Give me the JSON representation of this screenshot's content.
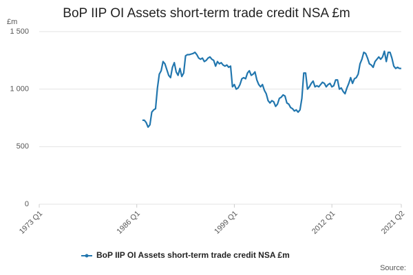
{
  "chart_data": {
    "type": "line",
    "title": "BoP IIP OI Assets short-term trade credit NSA £m",
    "y_unit": "£m",
    "source": "Source:",
    "categories": [
      "1973 Q1",
      null,
      null,
      null,
      null,
      null,
      null,
      null,
      null,
      null,
      null,
      null,
      null,
      null,
      null,
      null,
      null,
      null,
      null,
      null,
      null,
      null,
      null,
      null,
      null,
      null,
      null,
      null,
      null,
      null,
      null,
      null,
      null,
      null,
      null,
      null,
      null,
      null,
      null,
      null,
      null,
      null,
      null,
      null,
      null,
      null,
      null,
      null,
      null,
      null,
      null,
      null,
      "1986 Q1",
      null,
      null,
      null,
      null,
      null,
      null,
      null,
      null,
      null,
      null,
      null,
      null,
      null,
      null,
      null,
      null,
      null,
      null,
      null,
      null,
      null,
      null,
      null,
      null,
      null,
      null,
      null,
      null,
      null,
      null,
      null,
      null,
      null,
      null,
      null,
      null,
      null,
      null,
      null,
      null,
      null,
      null,
      null,
      null,
      null,
      null,
      null,
      null,
      null,
      null,
      null,
      "1999 Q1",
      null,
      null,
      null,
      null,
      null,
      null,
      null,
      null,
      null,
      null,
      null,
      null,
      null,
      null,
      null,
      null,
      null,
      null,
      null,
      null,
      null,
      null,
      null,
      null,
      null,
      null,
      null,
      null,
      null,
      null,
      null,
      null,
      null,
      null,
      null,
      null,
      null,
      null,
      null,
      null,
      null,
      null,
      null,
      null,
      null,
      null,
      null,
      null,
      null,
      null,
      null,
      "2012 Q1",
      null,
      null,
      null,
      null,
      null,
      null,
      null,
      null,
      null,
      null,
      null,
      null,
      null,
      null,
      null,
      null,
      null,
      null,
      null,
      null,
      null,
      null,
      null,
      null,
      null,
      null,
      null,
      null,
      null,
      null,
      null,
      null,
      null,
      null,
      null,
      null,
      "2021 Q2"
    ],
    "series": [
      {
        "name": "BoP IIP OI Assets short-term trade credit NSA £m",
        "color": "#2176ae",
        "values": [
          null,
          null,
          null,
          null,
          null,
          null,
          null,
          null,
          null,
          null,
          null,
          null,
          null,
          null,
          null,
          null,
          null,
          null,
          null,
          null,
          null,
          null,
          null,
          null,
          null,
          null,
          null,
          null,
          null,
          null,
          null,
          null,
          null,
          null,
          null,
          null,
          null,
          null,
          null,
          null,
          null,
          null,
          null,
          null,
          null,
          null,
          null,
          null,
          null,
          null,
          null,
          null,
          null,
          null,
          null,
          730,
          730,
          710,
          670,
          690,
          800,
          820,
          830,
          1010,
          1130,
          1160,
          1240,
          1220,
          1170,
          1120,
          1100,
          1190,
          1230,
          1150,
          1120,
          1180,
          1110,
          1140,
          1290,
          1300,
          1300,
          1305,
          1310,
          1320,
          1300,
          1270,
          1260,
          1270,
          1240,
          1250,
          1270,
          1280,
          1260,
          1250,
          1200,
          1240,
          1220,
          1230,
          1210,
          1200,
          1210,
          1190,
          1200,
          1020,
          1040,
          1000,
          1010,
          1040,
          1090,
          1100,
          1090,
          1140,
          1160,
          1120,
          1130,
          1150,
          1080,
          1040,
          1020,
          1040,
          990,
          960,
          900,
          880,
          900,
          890,
          850,
          870,
          920,
          930,
          950,
          940,
          880,
          870,
          840,
          830,
          810,
          820,
          800,
          820,
          920,
          1140,
          1140,
          1000,
          1020,
          1050,
          1070,
          1020,
          1030,
          1020,
          1040,
          1060,
          1050,
          1020,
          1040,
          1050,
          1020,
          1030,
          1080,
          1080,
          1000,
          1010,
          980,
          960,
          1010,
          1050,
          1100,
          1050,
          1090,
          1100,
          1130,
          1220,
          1260,
          1320,
          1310,
          1270,
          1220,
          1210,
          1190,
          1240,
          1260,
          1280,
          1260,
          1280,
          1330,
          1240,
          1320,
          1320,
          1270,
          1200,
          1180,
          1190,
          1180,
          1180
        ]
      }
    ],
    "ylim": [
      0,
      1500
    ],
    "yticks": [
      0,
      500,
      {
        "value": 1000,
        "label": "1 000"
      },
      {
        "value": 1500,
        "label": "1 500"
      }
    ],
    "grid": true
  }
}
